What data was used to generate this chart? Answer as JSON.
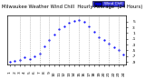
{
  "title": "Milwaukee Weather Wind Chill  Hourly Average  (24 Hours)",
  "hours": [
    1,
    2,
    3,
    4,
    5,
    6,
    7,
    8,
    9,
    10,
    11,
    12,
    13,
    14,
    15,
    16,
    17,
    18,
    19,
    20,
    21,
    22,
    23,
    24
  ],
  "wind_chill": [
    -9,
    -8.5,
    -8.2,
    -7.5,
    -8,
    -7.2,
    -6,
    -3.5,
    -1.5,
    0.5,
    2.5,
    3.5,
    4.5,
    5.2,
    5.5,
    4.8,
    3.5,
    1.5,
    -0.5,
    -1.5,
    -2.5,
    -4,
    -5,
    -6.5
  ],
  "line_color": "#0000ff",
  "bg_color": "#ffffff",
  "grid_color": "#999999",
  "ylim": [
    -10,
    7
  ],
  "ytick_vals": [
    -9,
    -7,
    -5,
    -3,
    -1,
    1,
    3,
    5
  ],
  "ytick_labels": [
    "-9",
    "-7",
    "-5",
    "-3",
    "-1",
    "1",
    "3",
    "5"
  ],
  "legend_label": "Wind Chill",
  "legend_color": "#0000cc",
  "title_fontsize": 3.8,
  "tick_fontsize": 3.2,
  "marker_size": 1.2,
  "grid_positions": [
    3,
    5,
    7,
    9,
    11,
    13,
    15,
    17,
    19,
    21,
    23
  ]
}
